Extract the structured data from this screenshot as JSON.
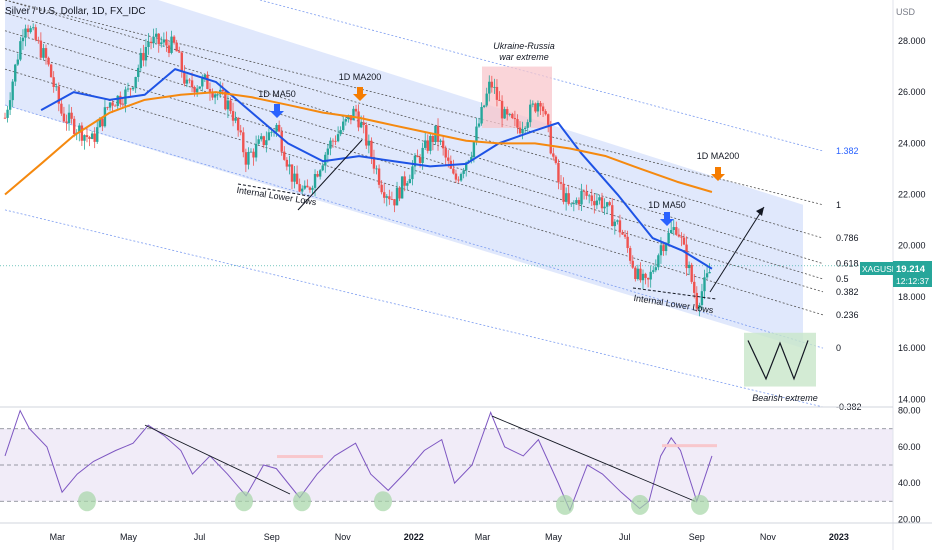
{
  "header": {
    "title": "Silver / U.S. Dollar, 1D, FX_IDC"
  },
  "price_axis": {
    "unit": "USD",
    "ticks": [
      "28.000",
      "26.000",
      "24.000",
      "22.000",
      "20.000",
      "18.000",
      "16.000",
      "14.000"
    ]
  },
  "rsi_axis": {
    "ticks": [
      "80.00",
      "60.00",
      "40.00",
      "20.00"
    ]
  },
  "time_axis": {
    "labels": [
      "Mar",
      "May",
      "Jul",
      "Sep",
      "Nov",
      "2022",
      "Mar",
      "May",
      "Jul",
      "Sep",
      "Nov",
      "2023"
    ]
  },
  "price_tag": {
    "symbol": "XAGUSD",
    "value": "19.214",
    "countdown": "12:12:37"
  },
  "fib_levels": [
    "1.382",
    "1",
    "0.786",
    "0.618",
    "0.5",
    "0.382",
    "0.236",
    "0",
    "-0.382"
  ],
  "annotations": {
    "ma50_label": "1D MA50",
    "ma200_label": "1D MA200",
    "ukraine_line1": "Ukraine-Russia",
    "ukraine_line2": "war extreme",
    "internal_lower_lows": "Internal Lower Lows",
    "bearish_extreme": "Bearish extreme"
  },
  "colors": {
    "up": "#26a69a",
    "down": "#ef5350",
    "ma50": "#1e53e5",
    "ma200": "#f5890f",
    "channel": "#c9d6f7",
    "rsi": "#7e57c2",
    "rsi_band": "#ede7f6",
    "price_tag": "#26a69a",
    "arrow_blue": "#2962ff",
    "arrow_orange": "#f57c00"
  },
  "chart_data": [
    {
      "type": "candlestick",
      "title": "Silver / U.S. Dollar, 1D, FX_IDC",
      "ylabel": "USD",
      "ylim": [
        13.7,
        29.6
      ],
      "x_start": "2021-01-15",
      "x_end": "2023-02-01",
      "close_path": [
        [
          "2021-01-15",
          25.0
        ],
        [
          "2021-02-01",
          28.8
        ],
        [
          "2021-02-20",
          27.2
        ],
        [
          "2021-03-05",
          25.1
        ],
        [
          "2021-03-31",
          24.1
        ],
        [
          "2021-04-15",
          25.6
        ],
        [
          "2021-05-01",
          26.0
        ],
        [
          "2021-05-18",
          28.0
        ],
        [
          "2021-06-10",
          27.8
        ],
        [
          "2021-06-20",
          26.2
        ],
        [
          "2021-07-06",
          26.4
        ],
        [
          "2021-07-28",
          25.4
        ],
        [
          "2021-08-10",
          23.4
        ],
        [
          "2021-08-25",
          24.1
        ],
        [
          "2021-09-05",
          24.7
        ],
        [
          "2021-09-20",
          22.5
        ],
        [
          "2021-09-30",
          22.0
        ],
        [
          "2021-10-20",
          23.9
        ],
        [
          "2021-11-12",
          25.3
        ],
        [
          "2021-11-22",
          24.0
        ],
        [
          "2021-12-05",
          22.3
        ],
        [
          "2021-12-15",
          21.8
        ],
        [
          "2021-12-30",
          23.0
        ],
        [
          "2022-01-20",
          24.4
        ],
        [
          "2022-02-05",
          22.5
        ],
        [
          "2022-02-20",
          23.8
        ],
        [
          "2022-03-08",
          26.4
        ],
        [
          "2022-03-20",
          25.0
        ],
        [
          "2022-04-01",
          24.6
        ],
        [
          "2022-04-20",
          25.8
        ],
        [
          "2022-05-05",
          22.5
        ],
        [
          "2022-05-15",
          21.4
        ],
        [
          "2022-05-25",
          22.0
        ],
        [
          "2022-06-10",
          21.8
        ],
        [
          "2022-06-28",
          20.6
        ],
        [
          "2022-07-12",
          18.8
        ],
        [
          "2022-07-20",
          18.4
        ],
        [
          "2022-08-01",
          20.0
        ],
        [
          "2022-08-15",
          20.8
        ],
        [
          "2022-08-25",
          19.1
        ],
        [
          "2022-09-01",
          17.8
        ],
        [
          "2022-09-08",
          18.5
        ],
        [
          "2022-09-14",
          19.2
        ]
      ],
      "series": [
        {
          "name": "1D MA50",
          "points": [
            [
              "2021-02-15",
              25.3
            ],
            [
              "2021-03-15",
              26.0
            ],
            [
              "2021-04-15",
              25.7
            ],
            [
              "2021-05-15",
              25.9
            ],
            [
              "2021-06-10",
              26.9
            ],
            [
              "2021-07-15",
              26.4
            ],
            [
              "2021-08-15",
              25.2
            ],
            [
              "2021-09-15",
              24.0
            ],
            [
              "2021-10-15",
              23.3
            ],
            [
              "2021-11-15",
              23.5
            ],
            [
              "2021-12-15",
              23.3
            ],
            [
              "2022-01-15",
              23.1
            ],
            [
              "2022-02-15",
              23.2
            ],
            [
              "2022-03-15",
              24.0
            ],
            [
              "2022-04-15",
              24.5
            ],
            [
              "2022-05-05",
              24.8
            ],
            [
              "2022-05-25",
              23.6
            ],
            [
              "2022-06-25",
              22.0
            ],
            [
              "2022-07-25",
              20.3
            ],
            [
              "2022-08-20",
              19.8
            ],
            [
              "2022-09-14",
              19.1
            ]
          ]
        },
        {
          "name": "1D MA200",
          "points": [
            [
              "2021-01-15",
              22.0
            ],
            [
              "2021-02-15",
              23.2
            ],
            [
              "2021-03-15",
              24.3
            ],
            [
              "2021-04-15",
              25.2
            ],
            [
              "2021-05-15",
              25.7
            ],
            [
              "2021-06-15",
              25.9
            ],
            [
              "2021-07-15",
              26.0
            ],
            [
              "2021-08-15",
              25.8
            ],
            [
              "2021-09-15",
              25.5
            ],
            [
              "2021-10-15",
              25.2
            ],
            [
              "2021-11-15",
              25.0
            ],
            [
              "2021-12-15",
              24.7
            ],
            [
              "2022-01-15",
              24.4
            ],
            [
              "2022-02-15",
              24.1
            ],
            [
              "2022-03-15",
              24.0
            ],
            [
              "2022-04-15",
              24.0
            ],
            [
              "2022-05-15",
              23.8
            ],
            [
              "2022-06-15",
              23.5
            ],
            [
              "2022-07-15",
              23.0
            ],
            [
              "2022-08-15",
              22.5
            ],
            [
              "2022-09-14",
              22.1
            ]
          ]
        }
      ]
    },
    {
      "type": "line",
      "title": "RSI",
      "ylim": [
        18,
        82
      ],
      "bands": [
        30,
        50,
        70
      ],
      "points": [
        [
          "2021-01-15",
          55
        ],
        [
          "2021-01-28",
          80
        ],
        [
          "2021-02-05",
          70
        ],
        [
          "2021-02-20",
          60
        ],
        [
          "2021-03-05",
          35
        ],
        [
          "2021-03-18",
          45
        ],
        [
          "2021-04-01",
          52
        ],
        [
          "2021-04-20",
          58
        ],
        [
          "2021-05-05",
          62
        ],
        [
          "2021-05-18",
          72
        ],
        [
          "2021-06-01",
          66
        ],
        [
          "2021-06-15",
          58
        ],
        [
          "2021-06-25",
          45
        ],
        [
          "2021-07-10",
          55
        ],
        [
          "2021-07-25",
          45
        ],
        [
          "2021-08-10",
          33
        ],
        [
          "2021-08-25",
          50
        ],
        [
          "2021-09-05",
          48
        ],
        [
          "2021-09-25",
          32
        ],
        [
          "2021-10-10",
          45
        ],
        [
          "2021-10-25",
          55
        ],
        [
          "2021-11-12",
          62
        ],
        [
          "2021-11-25",
          45
        ],
        [
          "2021-12-10",
          36
        ],
        [
          "2021-12-25",
          46
        ],
        [
          "2022-01-10",
          58
        ],
        [
          "2022-01-25",
          64
        ],
        [
          "2022-02-05",
          40
        ],
        [
          "2022-02-20",
          50
        ],
        [
          "2022-03-08",
          79
        ],
        [
          "2022-03-20",
          60
        ],
        [
          "2022-04-05",
          55
        ],
        [
          "2022-04-18",
          64
        ],
        [
          "2022-05-05",
          40
        ],
        [
          "2022-05-15",
          25
        ],
        [
          "2022-05-30",
          50
        ],
        [
          "2022-06-12",
          45
        ],
        [
          "2022-06-28",
          35
        ],
        [
          "2022-07-14",
          26
        ],
        [
          "2022-07-22",
          30
        ],
        [
          "2022-08-01",
          55
        ],
        [
          "2022-08-10",
          65
        ],
        [
          "2022-08-18",
          58
        ],
        [
          "2022-09-01",
          30
        ],
        [
          "2022-09-14",
          55
        ]
      ]
    }
  ]
}
